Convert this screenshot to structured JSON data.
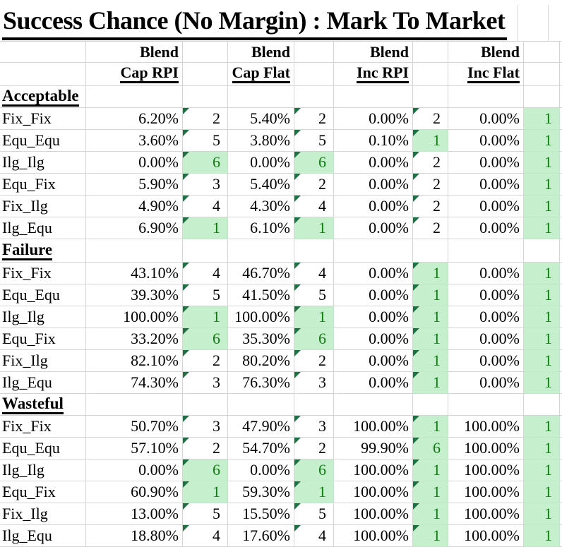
{
  "title": "Success Chance (No Margin) : Mark To Market",
  "column_groups": [
    {
      "group": "Blend",
      "label": "Cap RPI"
    },
    {
      "group": "Blend",
      "label": "Cap Flat"
    },
    {
      "group": "Blend",
      "label": "Inc RPI"
    },
    {
      "group": "Blend",
      "label": "Inc Flat"
    }
  ],
  "sections": [
    {
      "name": "Acceptable",
      "rows": [
        {
          "label": "Fix_Fix",
          "cells": [
            {
              "pct": "6.20%",
              "rank": "2",
              "good": false,
              "flag": true
            },
            {
              "pct": "5.40%",
              "rank": "2",
              "good": false,
              "flag": true
            },
            {
              "pct": "0.00%",
              "rank": "2",
              "good": false,
              "flag": true
            },
            {
              "pct": "0.00%",
              "rank": "1",
              "good": true,
              "flag": false
            }
          ]
        },
        {
          "label": "Equ_Equ",
          "cells": [
            {
              "pct": "3.60%",
              "rank": "5",
              "good": false,
              "flag": true
            },
            {
              "pct": "3.80%",
              "rank": "5",
              "good": false,
              "flag": true
            },
            {
              "pct": "0.10%",
              "rank": "1",
              "good": true,
              "flag": true
            },
            {
              "pct": "0.00%",
              "rank": "1",
              "good": true,
              "flag": false
            }
          ]
        },
        {
          "label": "Ilg_Ilg",
          "cells": [
            {
              "pct": "0.00%",
              "rank": "6",
              "good": true,
              "flag": true
            },
            {
              "pct": "0.00%",
              "rank": "6",
              "good": true,
              "flag": true
            },
            {
              "pct": "0.00%",
              "rank": "2",
              "good": false,
              "flag": true
            },
            {
              "pct": "0.00%",
              "rank": "1",
              "good": true,
              "flag": false
            }
          ]
        },
        {
          "label": "Equ_Fix",
          "cells": [
            {
              "pct": "5.90%",
              "rank": "3",
              "good": false,
              "flag": true
            },
            {
              "pct": "5.40%",
              "rank": "2",
              "good": false,
              "flag": true
            },
            {
              "pct": "0.00%",
              "rank": "2",
              "good": false,
              "flag": true
            },
            {
              "pct": "0.00%",
              "rank": "1",
              "good": true,
              "flag": false
            }
          ]
        },
        {
          "label": "Fix_Ilg",
          "cells": [
            {
              "pct": "4.90%",
              "rank": "4",
              "good": false,
              "flag": true
            },
            {
              "pct": "4.30%",
              "rank": "4",
              "good": false,
              "flag": true
            },
            {
              "pct": "0.00%",
              "rank": "2",
              "good": false,
              "flag": true
            },
            {
              "pct": "0.00%",
              "rank": "1",
              "good": true,
              "flag": false
            }
          ]
        },
        {
          "label": "Ilg_Equ",
          "cells": [
            {
              "pct": "6.90%",
              "rank": "1",
              "good": true,
              "flag": true
            },
            {
              "pct": "6.10%",
              "rank": "1",
              "good": true,
              "flag": true
            },
            {
              "pct": "0.00%",
              "rank": "2",
              "good": false,
              "flag": true
            },
            {
              "pct": "0.00%",
              "rank": "1",
              "good": true,
              "flag": false
            }
          ]
        }
      ]
    },
    {
      "name": "Failure",
      "rows": [
        {
          "label": "Fix_Fix",
          "cells": [
            {
              "pct": "43.10%",
              "rank": "4",
              "good": false,
              "flag": true
            },
            {
              "pct": "46.70%",
              "rank": "4",
              "good": false,
              "flag": true
            },
            {
              "pct": "0.00%",
              "rank": "1",
              "good": true,
              "flag": true
            },
            {
              "pct": "0.00%",
              "rank": "1",
              "good": true,
              "flag": false
            }
          ]
        },
        {
          "label": "Equ_Equ",
          "cells": [
            {
              "pct": "39.30%",
              "rank": "5",
              "good": false,
              "flag": true
            },
            {
              "pct": "41.50%",
              "rank": "5",
              "good": false,
              "flag": true
            },
            {
              "pct": "0.00%",
              "rank": "1",
              "good": true,
              "flag": true
            },
            {
              "pct": "0.00%",
              "rank": "1",
              "good": true,
              "flag": false
            }
          ]
        },
        {
          "label": "Ilg_Ilg",
          "cells": [
            {
              "pct": "100.00%",
              "rank": "1",
              "good": true,
              "flag": true
            },
            {
              "pct": "100.00%",
              "rank": "1",
              "good": true,
              "flag": true
            },
            {
              "pct": "0.00%",
              "rank": "1",
              "good": true,
              "flag": true
            },
            {
              "pct": "0.00%",
              "rank": "1",
              "good": true,
              "flag": false
            }
          ]
        },
        {
          "label": "Equ_Fix",
          "cells": [
            {
              "pct": "33.20%",
              "rank": "6",
              "good": true,
              "flag": true
            },
            {
              "pct": "35.30%",
              "rank": "6",
              "good": true,
              "flag": true
            },
            {
              "pct": "0.00%",
              "rank": "1",
              "good": true,
              "flag": true
            },
            {
              "pct": "0.00%",
              "rank": "1",
              "good": true,
              "flag": false
            }
          ]
        },
        {
          "label": "Fix_Ilg",
          "cells": [
            {
              "pct": "82.10%",
              "rank": "2",
              "good": false,
              "flag": true
            },
            {
              "pct": "80.20%",
              "rank": "2",
              "good": false,
              "flag": true
            },
            {
              "pct": "0.00%",
              "rank": "1",
              "good": true,
              "flag": true
            },
            {
              "pct": "0.00%",
              "rank": "1",
              "good": true,
              "flag": false
            }
          ]
        },
        {
          "label": "Ilg_Equ",
          "cells": [
            {
              "pct": "74.30%",
              "rank": "3",
              "good": false,
              "flag": true
            },
            {
              "pct": "76.30%",
              "rank": "3",
              "good": false,
              "flag": true
            },
            {
              "pct": "0.00%",
              "rank": "1",
              "good": true,
              "flag": true
            },
            {
              "pct": "0.00%",
              "rank": "1",
              "good": true,
              "flag": false
            }
          ]
        }
      ]
    },
    {
      "name": "Wasteful",
      "rows": [
        {
          "label": "Fix_Fix",
          "cells": [
            {
              "pct": "50.70%",
              "rank": "3",
              "good": false,
              "flag": true
            },
            {
              "pct": "47.90%",
              "rank": "3",
              "good": false,
              "flag": true
            },
            {
              "pct": "100.00%",
              "rank": "1",
              "good": true,
              "flag": true
            },
            {
              "pct": "100.00%",
              "rank": "1",
              "good": true,
              "flag": false
            }
          ]
        },
        {
          "label": "Equ_Equ",
          "cells": [
            {
              "pct": "57.10%",
              "rank": "2",
              "good": false,
              "flag": true
            },
            {
              "pct": "54.70%",
              "rank": "2",
              "good": false,
              "flag": true
            },
            {
              "pct": "99.90%",
              "rank": "6",
              "good": true,
              "flag": true
            },
            {
              "pct": "100.00%",
              "rank": "1",
              "good": true,
              "flag": false
            }
          ]
        },
        {
          "label": "Ilg_Ilg",
          "cells": [
            {
              "pct": "0.00%",
              "rank": "6",
              "good": true,
              "flag": true
            },
            {
              "pct": "0.00%",
              "rank": "6",
              "good": true,
              "flag": true
            },
            {
              "pct": "100.00%",
              "rank": "1",
              "good": true,
              "flag": true
            },
            {
              "pct": "100.00%",
              "rank": "1",
              "good": true,
              "flag": false
            }
          ]
        },
        {
          "label": "Equ_Fix",
          "cells": [
            {
              "pct": "60.90%",
              "rank": "1",
              "good": true,
              "flag": true
            },
            {
              "pct": "59.30%",
              "rank": "1",
              "good": true,
              "flag": true
            },
            {
              "pct": "100.00%",
              "rank": "1",
              "good": true,
              "flag": true
            },
            {
              "pct": "100.00%",
              "rank": "1",
              "good": true,
              "flag": false
            }
          ]
        },
        {
          "label": "Fix_Ilg",
          "cells": [
            {
              "pct": "13.00%",
              "rank": "5",
              "good": false,
              "flag": true
            },
            {
              "pct": "15.50%",
              "rank": "5",
              "good": false,
              "flag": true
            },
            {
              "pct": "100.00%",
              "rank": "1",
              "good": true,
              "flag": true
            },
            {
              "pct": "100.00%",
              "rank": "1",
              "good": true,
              "flag": false
            }
          ]
        },
        {
          "label": "Ilg_Equ",
          "cells": [
            {
              "pct": "18.80%",
              "rank": "4",
              "good": false,
              "flag": true
            },
            {
              "pct": "17.60%",
              "rank": "4",
              "good": false,
              "flag": true
            },
            {
              "pct": "100.00%",
              "rank": "1",
              "good": true,
              "flag": true
            },
            {
              "pct": "100.00%",
              "rank": "1",
              "good": true,
              "flag": false
            }
          ]
        }
      ]
    }
  ],
  "colors": {
    "good_cell_background": "#c6efce",
    "good_cell_text": "#0e7c10",
    "flag_triangle": "#1e7145",
    "gridline": "#d4d4d4",
    "text": "#000000"
  }
}
